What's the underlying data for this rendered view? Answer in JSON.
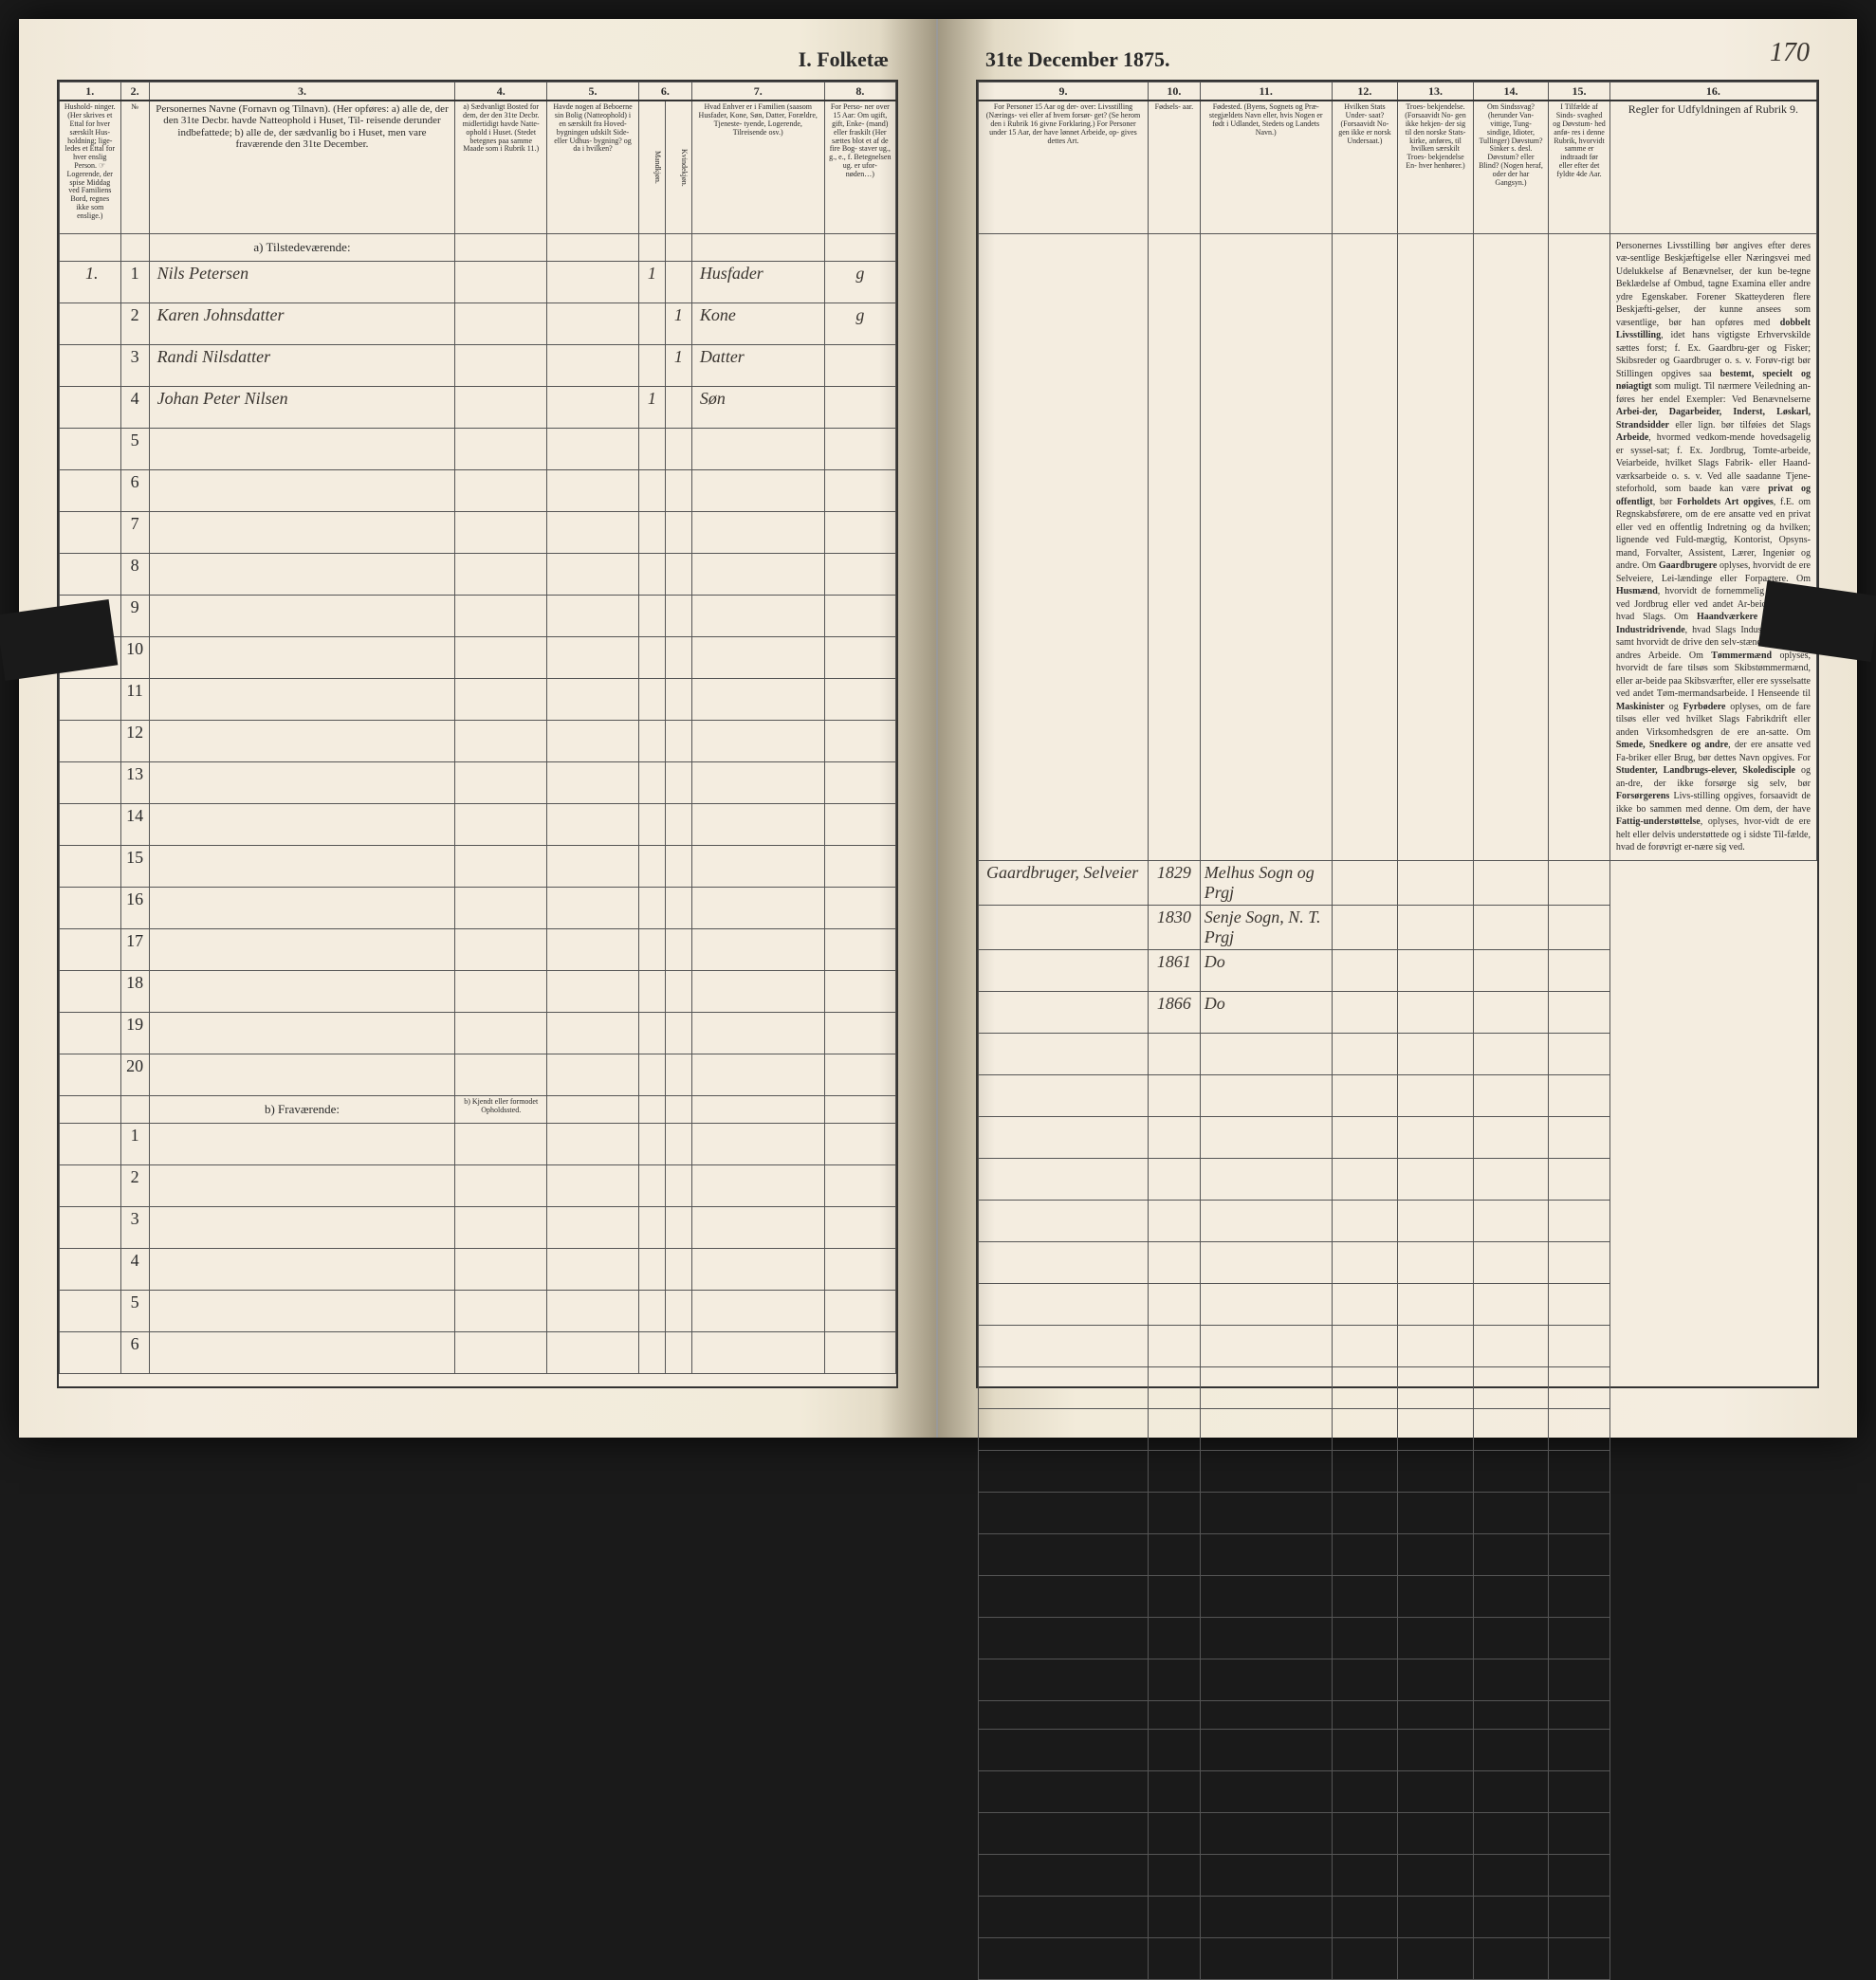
{
  "header": {
    "title_left": "I. Folketæ",
    "title_right": "31te December 1875.",
    "page_number": "170"
  },
  "columns_left": {
    "c1": "1.",
    "c2": "2.",
    "c3": "3.",
    "c4": "4.",
    "c5": "5.",
    "c6": "6.",
    "c7": "7.",
    "c8": "8."
  },
  "columns_right": {
    "c9": "9.",
    "c10": "10.",
    "c11": "11.",
    "c12": "12.",
    "c13": "13.",
    "c14": "14.",
    "c15": "15.",
    "c16": "16."
  },
  "headers_left": {
    "h1": "Hushold-\nninger.\n(Her skrives et\nEttal for hver\nsærskilt Hus-\nholdning; lige-\nledes et Ettal for\nhver enslig\nPerson.\n☞ Logerende,\nder spise Middag\nved Familiens\nBord, regnes ikke\nsom enslige.)",
    "h2": "№",
    "h3": "Personernes Navne (Fornavn og Tilnavn).\n(Her opføres:\na) alle de, der den 31te Decbr. havde Natteophold i Huset, Til-\nreisende derunder indbefattede;\nb) alle de, der sædvanlig bo i Huset, men vare fraværende\nden 31te December.",
    "h4": "a) Sædvanligt\nBosted for\ndem, der den\n31te Decbr.\nmidlertidigt\nhavde Natte-\nophold i Huset.\n(Stedet betegnes\npaa samme Maade\nsom i Rubrik 11.)",
    "h5": "Havde nogen\naf Beboerne\nsin Bolig\n(Natteophold)\ni en særskilt\nfra Hoved-\nbygningen\nudskilt Side-\neller Udhus-\nbygning?\nog da i\nhvilken?",
    "h6": "Kjøn.\n(Her sæt-\ntes et\nEttal i\nvedkom-\nmende\nRubrik.)",
    "h6a": "Mandkjøn.",
    "h6b": "Kvindekjøn.",
    "h7": "Hvad Enhver er\ni Familien\n(saasom Husfader,\nKone, Søn, Datter,\nForældre, Tjeneste-\ntyende, Logerende,\nTilreisende osv.)",
    "h8": "For Perso-\nner over 15 Aar:\nOm ugift,\ngift, Enke-\n(mand) eller\nfraskilt\n(Her sættes\nblot et af\nde fire Bog-\nstaver ug.,\ng., e., f.\nBetegnelsen\nug. er ufor-\nnøden…)"
  },
  "headers_right": {
    "h9": "For Personer 15 Aar og der-\nover: Livsstilling (Nærings-\nvei eller af hvem forsør-\nget? (Se herom den i Rubrik 16\ngivne Forklaring.)\nFor Personer under 15 Aar,\nder have lønnet Arbeide, op-\ngives dettes Art.",
    "h10": "Fødsels-\naar.",
    "h11": "Fødested.\n(Byens, Sognets og Præ-\nstegjældets Navn eller, hvis\nNogen er født i Udlandet,\nStedets og Landets\nNavn.)",
    "h12": "Hvilken\nStats Under-\nsaat?\n(Forsaavidt No-\ngen ikke er\nnorsk\nUndersaat.)",
    "h13": "Troes-\nbekjendelse.\n(Forsaavidt No-\ngen ikke hekjen-\nder sig til den\nnorske Stats-\nkirke, anføres,\ntil hvilken\nsærskilt Troes-\nbekjendelse En-\nhver henhører.)",
    "h14": "Om\nSindssvag?\n(herunder Van-\nvittige, Tung-\nsindige, Idioter,\nTullinger)\nDøvstum?\nSinker s. desl.\nDøvstum?\neller Blind?\n(Nogen heraf,\noder der har\nGangsyn.)",
    "h15": "I Tilfælde\naf Sinds-\nsvaghed og\nDøvstum-\nhed anfø-\nres i denne\nRubrik,\nhvorvidt\nsamme er\nindtraadt\nfør eller\nefter det\nfyldte\n4de Aar.",
    "h16": "Regler for Udfyldningen\naf\nRubrik 9."
  },
  "section_a": "a) Tilstedeværende:",
  "section_b": "b) Fraværende:",
  "section_b_col4": "b) Kjendt eller\nformodet\nOpholdssted.",
  "rows": [
    {
      "n": "1",
      "hh": "1.",
      "name": "Nils Petersen",
      "col4": "",
      "col5": "",
      "m": "1",
      "k": "",
      "fam": "Husfader",
      "civ": "g",
      "occ": "Gaardbruger, Selveier",
      "yr": "1829",
      "place": "Melhus\nSogn og Prgj"
    },
    {
      "n": "2",
      "hh": "",
      "name": "Karen Johnsdatter",
      "col4": "",
      "col5": "",
      "m": "",
      "k": "1",
      "fam": "Kone",
      "civ": "g",
      "occ": "",
      "yr": "1830",
      "place": "Senje Sogn,\nN. T. Prgj"
    },
    {
      "n": "3",
      "hh": "",
      "name": "Randi Nilsdatter",
      "col4": "",
      "col5": "",
      "m": "",
      "k": "1",
      "fam": "Datter",
      "civ": "",
      "occ": "",
      "yr": "1861",
      "place": "Do"
    },
    {
      "n": "4",
      "hh": "",
      "name": "Johan Peter Nilsen",
      "col4": "",
      "col5": "",
      "m": "1",
      "k": "",
      "fam": "Søn",
      "civ": "",
      "occ": "",
      "yr": "1866",
      "place": "Do"
    }
  ],
  "empty_rows_a": [
    "5",
    "6",
    "7",
    "8",
    "9",
    "10",
    "11",
    "12",
    "13",
    "14",
    "15",
    "16",
    "17",
    "18",
    "19",
    "20"
  ],
  "empty_rows_b": [
    "1",
    "2",
    "3",
    "4",
    "5",
    "6"
  ],
  "instructions_text": "Personernes Livsstilling bør angives efter deres væ-sentlige Beskjæftigelse eller Næringsvei med Udelukkelse af Benævnelser, der kun be-tegne Beklædelse af Ombud, tagne Examina eller andre ydre Egenskaber. Forener Skatteyderen flere Beskjæfti-gelser, der kunne ansees som væsentlige, bør han opføres med <b>dobbelt Livsstilling</b>, idet hans vigtigste Erhvervskilde sættes forst; f. Ex. Gaardbru-ger og Fisker; Skibsreder og Gaardbruger o. s. v. Forøv-rigt bør Stillingen opgives saa <b>bestemt, specielt og nøiagtigt</b> som muligt.  Til nærmere Veiledning an-føres her endel Exempler:  Ved Benævnelserne <b>Arbei-der, Dagarbeider, Inderst, Løskarl, Strandsidder</b> eller lign. bør tilføies det Slags <b>Arbeide</b>, hvormed vedkom-mende hovedsagelig er syssel-sat; f. Ex. Jordbrug, Tomte-arbeide, Veiarbeide, hvilket Slags Fabrik- eller Haand-værksarbeide o. s. v.  Ved alle saadanne Tjene-steforhold, som baade kan være <b>privat og offentligt</b>, bør <b>Forholdets Art opgives</b>, f.E. om Regnskabsførere, om de ere ansatte ved en privat eller ved en offentlig Indretning og da hvilken; lignende ved Fuld-mægtig, Kontorist, Opsyns-mand, Forvalter, Assistent, Lærer, Ingeniør og andre.  Om <b>Gaardbrugere</b> oplyses, hvorvidt de ere Selveiere, Lei-lændinge eller Forpagtere.  Om <b>Husmænd</b>, hvorvidt de fornemmelig ernære sig ved Jordbrug eller ved andet Ar-beide og da af hvad Slags.  Om <b>Haandværkere og an-dre Industridrivende</b>, hvad Slags Industri de drive, samt hvorvidt de drive den selv-stændigt eller ere i andres Arbeide.  Om <b>Tømmermænd</b> oplyses, hvorvidt de fare tilsøs som Skibstømmermænd, eller ar-beide paa Skibsværfter, eller ere sysselsatte ved andet Tøm-mermandsarbeide.  I Henseende til <b>Maskinister</b> og <b>Fyrbødere</b> oplyses, om de fare tilsøs eller ved hvilket Slags Fabrikdrift eller anden Virksomhedsgren de ere an-satte.  Om <b>Smede, Snedkere og andre</b>, der ere ansatte ved Fa-briker eller Brug, bør dettes Navn opgives.  For <b>Studenter, Landbrugs-elever, Skoledisciple</b> og an-dre, der ikke forsørge sig selv, bør <b>Forsørgerens</b> Livs-stilling opgives, forsaavidt de ikke bo sammen med denne.  Om dem, der have <b>Fattig-understøttelse</b>, oplyses, hvor-vidt de ere helt eller delvis understøttede og i sidste Til-fælde, hvad de forøvrigt er-nære sig ved.",
  "colors": {
    "paper": "#f4ede0",
    "ink": "#2a2a2a",
    "hand_ink": "#3a3530",
    "border": "#333333"
  },
  "col_widths_left": {
    "c1": 60,
    "c2": 28,
    "c3": 300,
    "c4": 90,
    "c5": 90,
    "c6a": 26,
    "c6b": 26,
    "c7": 130,
    "c8": 70
  },
  "col_widths_right": {
    "c9": 180,
    "c10": 55,
    "c11": 140,
    "c12": 70,
    "c13": 80,
    "c14": 80,
    "c15": 65,
    "c16": 220
  }
}
